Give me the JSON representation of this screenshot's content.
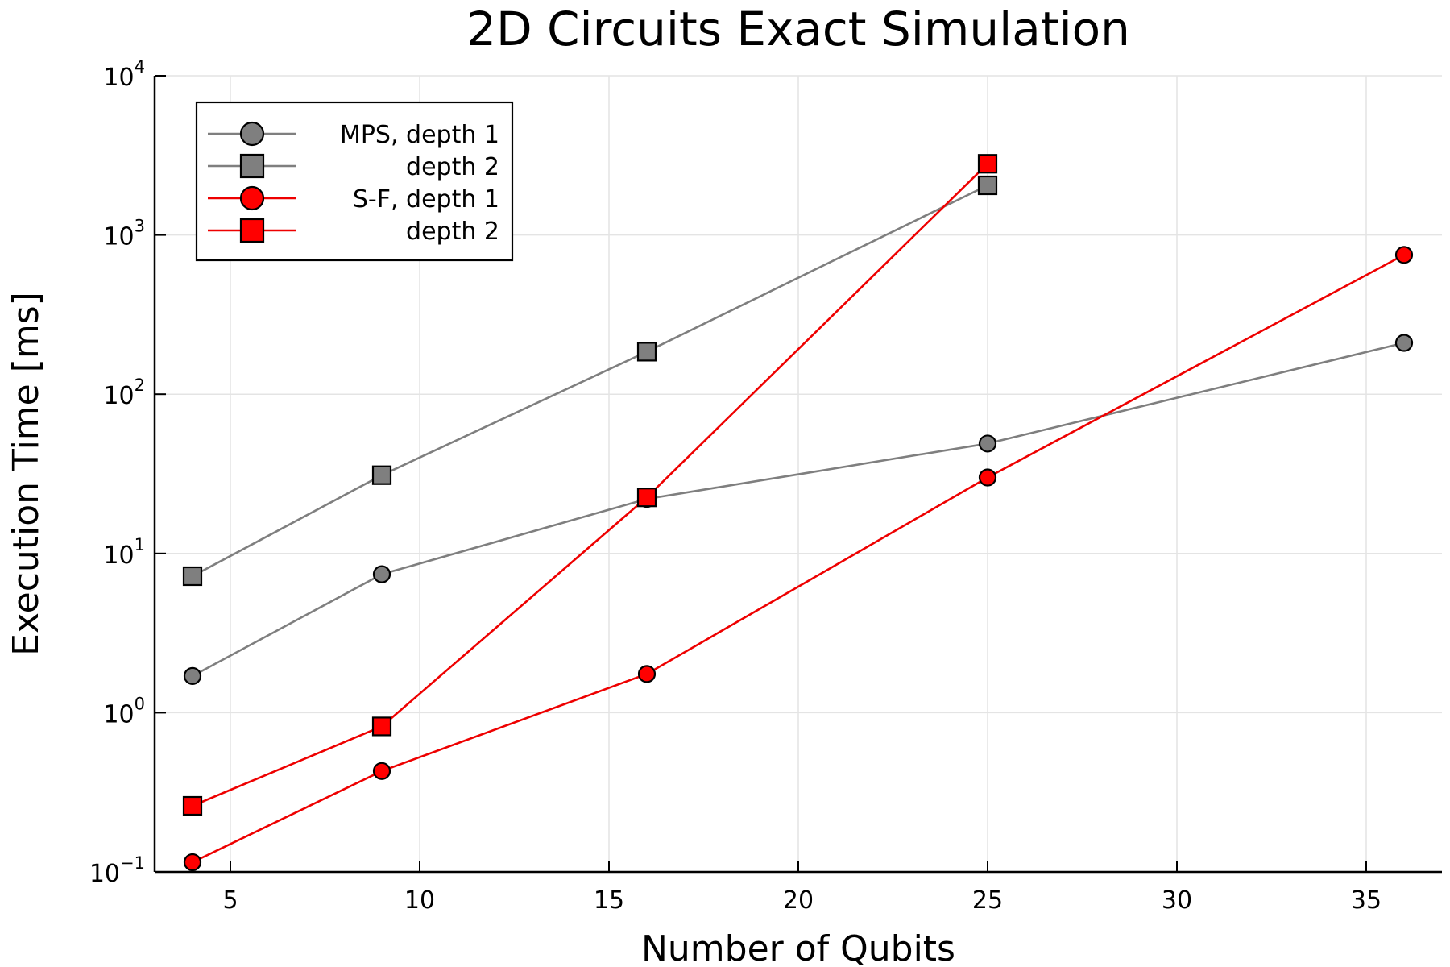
{
  "chart_data": {
    "type": "line",
    "title": "2D Circuits Exact Simulation",
    "xlabel": "Number of Qubits",
    "ylabel": "Execution Time [ms]",
    "xlim": [
      3,
      37
    ],
    "ylim": [
      0.1,
      10000
    ],
    "yscale": "log",
    "grid": true,
    "legend_position": "top-left",
    "x_ticks": [
      5,
      10,
      15,
      20,
      25,
      30,
      35
    ],
    "y_ticks": [
      {
        "value": 0.1,
        "base": "10",
        "exp": "−1"
      },
      {
        "value": 1,
        "base": "10",
        "exp": "0"
      },
      {
        "value": 10,
        "base": "10",
        "exp": "1"
      },
      {
        "value": 100,
        "base": "10",
        "exp": "2"
      },
      {
        "value": 1000,
        "base": "10",
        "exp": "3"
      },
      {
        "value": 10000,
        "base": "10",
        "exp": "4"
      }
    ],
    "series": [
      {
        "name": "MPS, depth 1",
        "legend_label": "MPS, depth 1",
        "color": "#7f7f7f",
        "marker": "circle",
        "x": [
          4,
          9,
          16,
          25,
          36
        ],
        "y": [
          1.7,
          7.4,
          22,
          49,
          210
        ]
      },
      {
        "name": "MPS, depth 2",
        "legend_label": "depth 2",
        "color": "#7f7f7f",
        "marker": "square",
        "x": [
          4,
          9,
          16,
          25
        ],
        "y": [
          7.2,
          31,
          185,
          2050
        ]
      },
      {
        "name": "S-F, depth 1",
        "legend_label": "S-F,  depth 1",
        "color": "#ff0000",
        "marker": "circle",
        "x": [
          4,
          9,
          16,
          25,
          36
        ],
        "y": [
          0.115,
          0.43,
          1.75,
          30,
          750
        ]
      },
      {
        "name": "S-F, depth 2",
        "legend_label": "depth 2",
        "color": "#ff0000",
        "marker": "square",
        "x": [
          4,
          9,
          16,
          25
        ],
        "y": [
          0.26,
          0.82,
          22.5,
          2800
        ]
      }
    ],
    "line_colors": {
      "mps": "#7f7f7f",
      "sf": "#ee0000"
    }
  }
}
